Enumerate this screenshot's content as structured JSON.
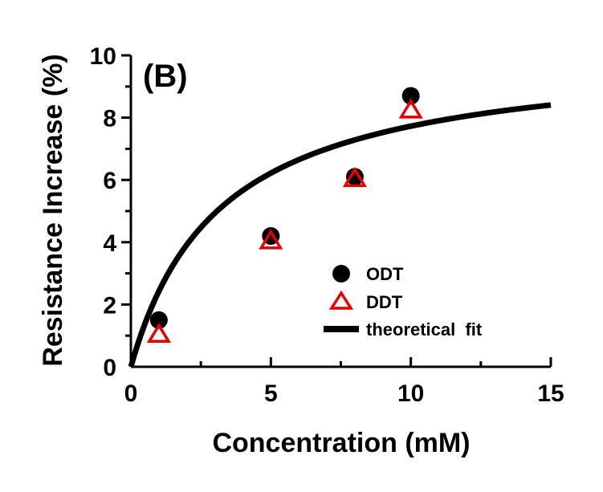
{
  "chart_data": {
    "type": "scatter",
    "panel_label": "(B)",
    "xlabel": "Concentration (mM)",
    "ylabel": "Resistance Increase (%)",
    "xlim": [
      0,
      15
    ],
    "ylim": [
      0,
      10
    ],
    "x_ticks": [
      0,
      5,
      10,
      15
    ],
    "y_ticks": [
      0,
      2,
      4,
      6,
      8,
      10
    ],
    "x_minor_step": 2.5,
    "y_minor_step": 1,
    "grid": false,
    "legend_position": "bottom-right",
    "series": [
      {
        "name": "ODT",
        "marker": "filled-circle",
        "color": "#000000",
        "points": [
          [
            1,
            1.5
          ],
          [
            5,
            4.2
          ],
          [
            8,
            6.1
          ],
          [
            10,
            8.7
          ]
        ]
      },
      {
        "name": "DDT",
        "marker": "open-triangle",
        "color": "#e00000",
        "points": [
          [
            1,
            1.05
          ],
          [
            5,
            4.05
          ],
          [
            8,
            6.05
          ],
          [
            10,
            8.25
          ]
        ]
      },
      {
        "name": "theoretical  fit",
        "marker": "line",
        "color": "#000000",
        "model": "langmuir",
        "ymax": 10.2,
        "K": 3.2
      }
    ]
  }
}
